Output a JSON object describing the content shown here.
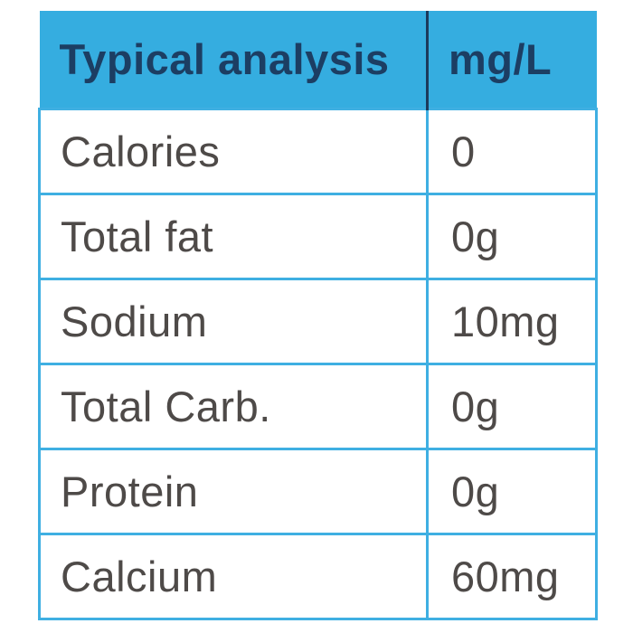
{
  "table": {
    "header": {
      "label_col": "Typical analysis",
      "value_col": "mg/L"
    },
    "rows": [
      {
        "label": "Calories",
        "value": "0"
      },
      {
        "label": "Total fat",
        "value": "0g"
      },
      {
        "label": "Sodium",
        "value": "10mg"
      },
      {
        "label": "Total Carb.",
        "value": "0g"
      },
      {
        "label": "Protein",
        "value": "0g"
      },
      {
        "label": "Calcium",
        "value": "60mg"
      }
    ]
  },
  "colors": {
    "header_bg": "#35ade0",
    "border": "#3fafe2",
    "header_text": "#1c3e63",
    "header_divider": "#1b3a5c",
    "body_text": "#4e4a48"
  },
  "chart_data": {
    "type": "table",
    "title": "Typical analysis",
    "columns": [
      "Typical analysis",
      "mg/L"
    ],
    "rows": [
      [
        "Calories",
        "0"
      ],
      [
        "Total fat",
        "0g"
      ],
      [
        "Sodium",
        "10mg"
      ],
      [
        "Total Carb.",
        "0g"
      ],
      [
        "Protein",
        "0g"
      ],
      [
        "Calcium",
        "60mg"
      ]
    ],
    "legend_position": "none",
    "grid": true
  }
}
